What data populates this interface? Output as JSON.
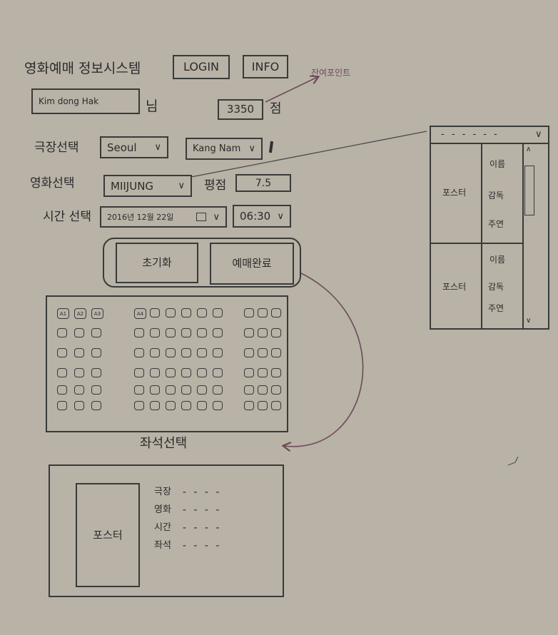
{
  "header": {
    "title": "영화예매 정보시스템",
    "login_label": "LOGIN",
    "info_label": "INFO"
  },
  "user": {
    "name_value": "Kim dong Hak",
    "name_suffix": "님",
    "points_value": "3350",
    "points_suffix": "점",
    "points_annotation": "잔여포인트"
  },
  "theater": {
    "label": "극장선택",
    "city_value": "Seoul",
    "branch_value": "Kang Nam"
  },
  "movie": {
    "label": "영화선택",
    "title_value": "MIIJUNG",
    "rating_label": "평점",
    "rating_value": "7.5"
  },
  "time": {
    "label": "시간 선택",
    "date_value": "2016년 12월 22일",
    "time_value": "06:30"
  },
  "actions": {
    "reset_label": "초기화",
    "complete_label": "예매완료"
  },
  "seat_map": {
    "caption": "좌석선택",
    "row_labels": [
      "A1",
      "A2",
      "A3",
      "A4"
    ]
  },
  "movie_dropdown": {
    "items": [
      {
        "poster_label": "포스터",
        "name_label": "이름",
        "director_label": "감독",
        "cast_label": "주연"
      },
      {
        "poster_label": "포스터",
        "name_label": "이름",
        "director_label": "감독",
        "cast_label": "주연"
      }
    ]
  },
  "summary": {
    "poster_label": "포스터",
    "rows": [
      "극장",
      "영화",
      "시간",
      "좌석"
    ],
    "dots": "- - - -"
  }
}
